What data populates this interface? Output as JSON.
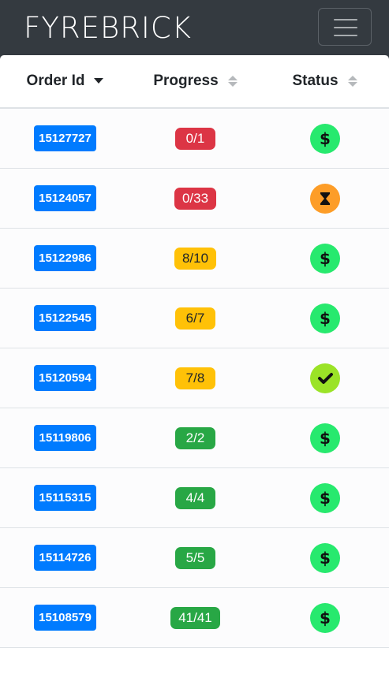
{
  "navbar": {
    "brand": "FYREBRICK",
    "menu_icon": "hamburger-icon"
  },
  "table": {
    "headers": [
      {
        "label": "Order Id",
        "sort": "descending"
      },
      {
        "label": "Progress",
        "sort": "none"
      },
      {
        "label": "Status",
        "sort": "none"
      }
    ],
    "rows": [
      {
        "order_id": "15127727",
        "progress": "0/1",
        "progress_color": "#dc3545",
        "status_icon": "dollar-icon",
        "status_color": "#27e96e"
      },
      {
        "order_id": "15124057",
        "progress": "0/33",
        "progress_color": "#dc3545",
        "status_icon": "hourglass-icon",
        "status_color": "#fd9d28"
      },
      {
        "order_id": "15122986",
        "progress": "8/10",
        "progress_color": "#ffc107",
        "status_icon": "dollar-icon",
        "status_color": "#27e96e"
      },
      {
        "order_id": "15122545",
        "progress": "6/7",
        "progress_color": "#ffc107",
        "status_icon": "dollar-icon",
        "status_color": "#27e96e"
      },
      {
        "order_id": "15120594",
        "progress": "7/8",
        "progress_color": "#ffc107",
        "status_icon": "check-icon",
        "status_color": "#9be327"
      },
      {
        "order_id": "15119806",
        "progress": "2/2",
        "progress_color": "#28a745",
        "status_icon": "dollar-icon",
        "status_color": "#27e96e"
      },
      {
        "order_id": "15115315",
        "progress": "4/4",
        "progress_color": "#28a745",
        "status_icon": "dollar-icon",
        "status_color": "#27e96e"
      },
      {
        "order_id": "15114726",
        "progress": "5/5",
        "progress_color": "#28a745",
        "status_icon": "dollar-icon",
        "status_color": "#27e96e"
      },
      {
        "order_id": "15108579",
        "progress": "41/41",
        "progress_color": "#28a745",
        "status_icon": "dollar-icon",
        "status_color": "#27e96e"
      }
    ]
  }
}
